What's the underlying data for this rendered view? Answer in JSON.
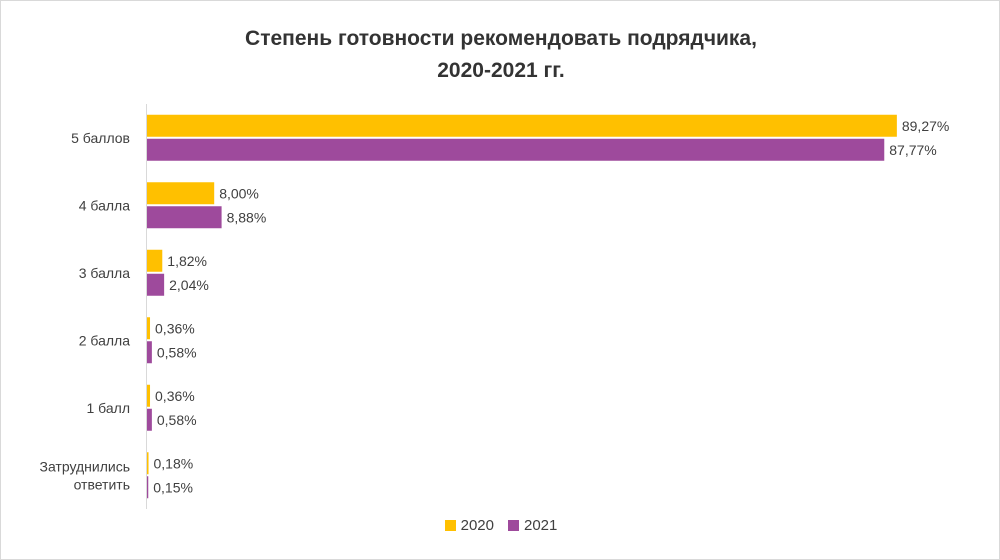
{
  "chart_data": {
    "type": "bar",
    "orientation": "horizontal",
    "title_lines": [
      "Степень готовности рекомендовать  подрядчика,",
      "2020-2021 гг."
    ],
    "categories": [
      [
        "5 баллов"
      ],
      [
        "4 балла"
      ],
      [
        "3 балла"
      ],
      [
        "2 балла"
      ],
      [
        "1 балл"
      ],
      [
        "Затруднились",
        "ответить"
      ]
    ],
    "series": [
      {
        "name": "2020",
        "color": "#FFC000",
        "values": [
          89.27,
          8.0,
          1.82,
          0.36,
          0.36,
          0.18
        ],
        "labels": [
          "89,27%",
          "8,00%",
          "1,82%",
          "0,36%",
          "0,36%",
          "0,18%"
        ]
      },
      {
        "name": "2021",
        "color": "#9E4A9C",
        "values": [
          87.77,
          8.88,
          2.04,
          0.58,
          0.58,
          0.15
        ],
        "labels": [
          "87,77%",
          "8,88%",
          "2,04%",
          "0,58%",
          "0,58%",
          "0,15%"
        ]
      }
    ],
    "xlim": [
      0,
      100
    ],
    "grid": false,
    "legend_position": "bottom"
  }
}
